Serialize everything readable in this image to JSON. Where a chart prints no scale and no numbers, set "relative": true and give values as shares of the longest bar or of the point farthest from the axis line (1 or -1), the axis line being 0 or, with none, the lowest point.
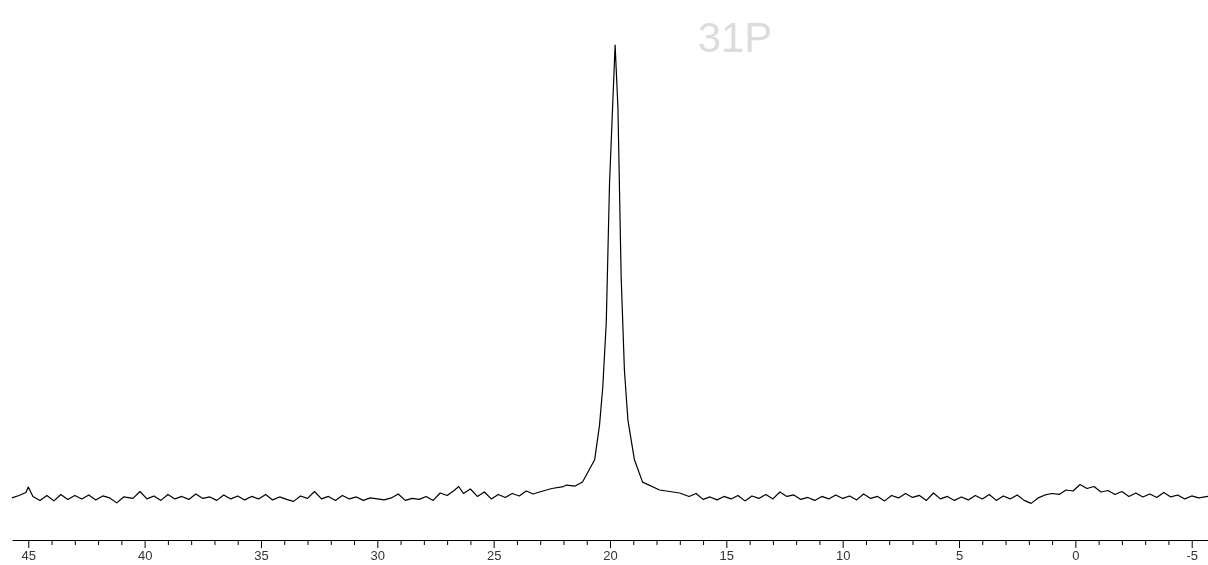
{
  "chart_data": {
    "type": "line",
    "title": "31P",
    "relative": true,
    "xlim": [
      45.7,
      -5.7
    ],
    "xticks": [
      45,
      {
        "value": 44,
        "label": null
      },
      {
        "value": 43,
        "label": null
      },
      {
        "value": 42,
        "label": null
      },
      {
        "value": 41,
        "label": null
      },
      40,
      {
        "value": 39,
        "label": null
      },
      {
        "value": 38,
        "label": null
      },
      {
        "value": 37,
        "label": null
      },
      {
        "value": 36,
        "label": null
      },
      35,
      {
        "value": 34,
        "label": null
      },
      {
        "value": 33,
        "label": null
      },
      {
        "value": 32,
        "label": null
      },
      {
        "value": 31,
        "label": null
      },
      30,
      {
        "value": 29,
        "label": null
      },
      {
        "value": 28,
        "label": null
      },
      {
        "value": 27,
        "label": null
      },
      {
        "value": 26,
        "label": null
      },
      25,
      {
        "value": 24,
        "label": null
      },
      {
        "value": 23,
        "label": null
      },
      {
        "value": 22,
        "label": null
      },
      {
        "value": 21,
        "label": null
      },
      20,
      {
        "value": 19,
        "label": null
      },
      {
        "value": 18,
        "label": null
      },
      {
        "value": 17,
        "label": null
      },
      {
        "value": 16,
        "label": null
      },
      15,
      {
        "value": 14,
        "label": null
      },
      {
        "value": 13,
        "label": null
      },
      {
        "value": 12,
        "label": null
      },
      {
        "value": 11,
        "label": null
      },
      10,
      {
        "value": 9,
        "label": null
      },
      {
        "value": 8,
        "label": null
      },
      {
        "value": 7,
        "label": null
      },
      {
        "value": 6,
        "label": null
      },
      5,
      {
        "value": 4,
        "label": null
      },
      {
        "value": 3,
        "label": null
      },
      {
        "value": 2,
        "label": null
      },
      {
        "value": 1,
        "label": null
      },
      0,
      {
        "value": -1,
        "label": null
      },
      {
        "value": -2,
        "label": null
      },
      {
        "value": -3,
        "label": null
      },
      {
        "value": -4,
        "label": null
      },
      -5
    ],
    "tick_labels": "x",
    "grid": false,
    "marker": "none",
    "line_style": "solid",
    "series": [
      {
        "color": "#000000",
        "x": [
          45.7,
          45.4,
          45.1,
          45.0,
          44.8,
          44.5,
          44.2,
          43.9,
          43.6,
          43.3,
          43.0,
          42.7,
          42.4,
          42.1,
          41.8,
          41.5,
          41.2,
          40.9,
          40.5,
          40.2,
          39.9,
          39.6,
          39.3,
          39.0,
          38.7,
          38.4,
          38.1,
          37.8,
          37.5,
          37.2,
          36.9,
          36.6,
          36.3,
          36.0,
          35.7,
          35.4,
          35.1,
          34.8,
          34.5,
          34.2,
          33.9,
          33.6,
          33.3,
          33.0,
          32.7,
          32.4,
          32.1,
          31.8,
          31.5,
          31.2,
          30.9,
          30.6,
          30.3,
          30.0,
          29.7,
          29.4,
          29.1,
          28.8,
          28.5,
          28.2,
          27.9,
          27.6,
          27.3,
          27.0,
          26.7,
          26.5,
          26.3,
          26.0,
          25.7,
          25.4,
          25.1,
          24.8,
          24.5,
          24.2,
          23.9,
          23.6,
          23.3,
          23.03,
          22.5,
          22.0,
          21.87,
          21.5,
          21.18,
          20.66,
          20.45,
          20.31,
          20.16,
          20.02,
          19.78,
          19.66,
          19.52,
          19.38,
          19.23,
          18.95,
          18.6,
          17.87,
          17.01,
          16.6,
          16.3,
          16.0,
          15.7,
          15.4,
          15.1,
          14.8,
          14.5,
          14.2,
          13.9,
          13.6,
          13.3,
          13.0,
          12.7,
          12.4,
          12.1,
          11.8,
          11.5,
          11.2,
          10.9,
          10.6,
          10.3,
          10.0,
          9.7,
          9.4,
          9.1,
          8.8,
          8.5,
          8.2,
          7.9,
          7.6,
          7.3,
          7.0,
          6.7,
          6.4,
          6.1,
          5.8,
          5.5,
          5.2,
          4.9,
          4.6,
          4.3,
          4.0,
          3.7,
          3.4,
          3.1,
          2.8,
          2.5,
          2.2,
          1.9,
          1.6,
          1.3,
          1.0,
          0.7,
          0.4,
          0.1,
          -0.2,
          -0.5,
          -0.8,
          -1.1,
          -1.4,
          -1.7,
          -2.0,
          -2.3,
          -2.6,
          -2.9,
          -3.2,
          -3.5,
          -3.8,
          -4.1,
          -4.4,
          -4.7,
          -5.0,
          -5.3,
          -5.7
        ],
        "values": [
          0.085,
          0.09,
          0.096,
          0.107,
          0.088,
          0.08,
          0.09,
          0.079,
          0.092,
          0.082,
          0.09,
          0.083,
          0.091,
          0.081,
          0.089,
          0.085,
          0.075,
          0.087,
          0.084,
          0.098,
          0.083,
          0.089,
          0.08,
          0.092,
          0.083,
          0.088,
          0.082,
          0.093,
          0.084,
          0.087,
          0.08,
          0.091,
          0.083,
          0.089,
          0.081,
          0.088,
          0.083,
          0.092,
          0.081,
          0.087,
          0.082,
          0.078,
          0.089,
          0.084,
          0.098,
          0.083,
          0.088,
          0.08,
          0.09,
          0.083,
          0.087,
          0.08,
          0.085,
          0.083,
          0.081,
          0.085,
          0.093,
          0.08,
          0.084,
          0.082,
          0.088,
          0.08,
          0.095,
          0.09,
          0.1,
          0.108,
          0.094,
          0.103,
          0.088,
          0.097,
          0.083,
          0.092,
          0.086,
          0.094,
          0.089,
          0.099,
          0.093,
          0.097,
          0.104,
          0.108,
          0.111,
          0.109,
          0.117,
          0.162,
          0.232,
          0.309,
          0.44,
          0.721,
          1,
          0.875,
          0.531,
          0.343,
          0.242,
          0.162,
          0.117,
          0.101,
          0.095,
          0.088,
          0.094,
          0.082,
          0.087,
          0.081,
          0.088,
          0.083,
          0.09,
          0.079,
          0.089,
          0.084,
          0.092,
          0.083,
          0.097,
          0.088,
          0.091,
          0.082,
          0.086,
          0.08,
          0.088,
          0.083,
          0.091,
          0.084,
          0.089,
          0.081,
          0.093,
          0.084,
          0.088,
          0.079,
          0.09,
          0.085,
          0.094,
          0.086,
          0.09,
          0.08,
          0.095,
          0.083,
          0.088,
          0.08,
          0.087,
          0.081,
          0.09,
          0.083,
          0.092,
          0.08,
          0.089,
          0.083,
          0.091,
          0.08,
          0.074,
          0.085,
          0.091,
          0.094,
          0.092,
          0.101,
          0.099,
          0.112,
          0.104,
          0.108,
          0.097,
          0.1,
          0.092,
          0.098,
          0.088,
          0.095,
          0.087,
          0.093,
          0.086,
          0.096,
          0.087,
          0.091,
          0.083,
          0.089,
          0.085,
          0.088
        ]
      }
    ]
  }
}
